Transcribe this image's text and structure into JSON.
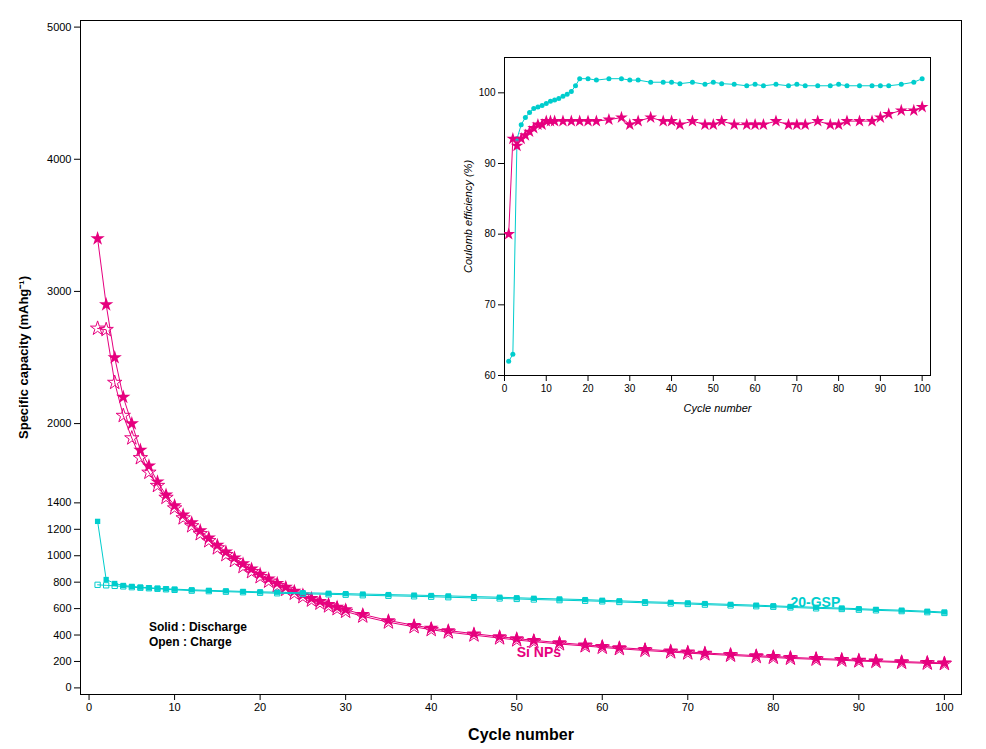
{
  "chart_data": [
    {
      "type": "line",
      "xlabel": "Cycle number",
      "ylabel": "Specific capacity (mAhg⁻¹)",
      "xlim": [
        -1,
        102
      ],
      "ylim": [
        -50,
        5050
      ],
      "xticks": [
        0,
        10,
        20,
        30,
        40,
        50,
        60,
        70,
        80,
        90,
        100
      ],
      "yticks": [
        0,
        200,
        400,
        600,
        800,
        1000,
        1200,
        1400,
        2000,
        3000,
        4000,
        5000
      ],
      "grid": false,
      "series": [
        {
          "color": "#E6007E",
          "marker": "star",
          "x": [
            1,
            2,
            3,
            4,
            5,
            6,
            7,
            8,
            9,
            10,
            11,
            12,
            13,
            14,
            15,
            16,
            17,
            18,
            19,
            20,
            21,
            22,
            23,
            24,
            25,
            26,
            27,
            28,
            29,
            30,
            32,
            35,
            38,
            40,
            42,
            45,
            48,
            50,
            52,
            55,
            58,
            60,
            62,
            65,
            68,
            70,
            72,
            75,
            78,
            80,
            82,
            85,
            88,
            90,
            92,
            95,
            98,
            100
          ],
          "values": [
            3400,
            2900,
            2500,
            2200,
            2000,
            1800,
            1680,
            1560,
            1460,
            1380,
            1310,
            1250,
            1190,
            1135,
            1080,
            1030,
            985,
            940,
            900,
            862,
            826,
            792,
            762,
            732,
            705,
            678,
            655,
            633,
            612,
            592,
            556,
            510,
            474,
            452,
            434,
            410,
            388,
            373,
            360,
            342,
            326,
            315,
            305,
            292,
            280,
            272,
            264,
            254,
            244,
            238,
            231,
            223,
            216,
            210,
            205,
            199,
            193,
            189
          ]
        },
        {
          "color": "#E6007E",
          "marker": "open_star",
          "x": [
            1,
            2,
            3,
            4,
            5,
            6,
            7,
            8,
            9,
            10,
            11,
            12,
            13,
            14,
            15,
            16,
            17,
            18,
            19,
            20,
            21,
            22,
            23,
            24,
            25,
            26,
            27,
            28,
            29,
            30,
            32,
            35,
            38,
            40,
            42,
            45,
            48,
            50,
            52,
            55,
            58,
            60,
            62,
            65,
            68,
            70,
            72,
            75,
            78,
            80,
            82,
            85,
            88,
            90,
            92,
            95,
            98,
            100
          ],
          "values": [
            2720,
            2710,
            2310,
            2060,
            1890,
            1740,
            1630,
            1530,
            1440,
            1360,
            1285,
            1225,
            1165,
            1112,
            1058,
            1007,
            962,
            917,
            878,
            840,
            806,
            773,
            744,
            715,
            689,
            663,
            640,
            619,
            598,
            578,
            542,
            497,
            462,
            440,
            422,
            399,
            377,
            362,
            350,
            332,
            317,
            306,
            296,
            283,
            271,
            263,
            256,
            246,
            236,
            230,
            223,
            216,
            209,
            203,
            199,
            192,
            186,
            183
          ]
        },
        {
          "color": "#00CDCD",
          "marker": "square",
          "x": [
            1,
            2,
            3,
            4,
            5,
            6,
            7,
            8,
            9,
            10,
            12,
            14,
            16,
            18,
            20,
            22,
            25,
            28,
            30,
            32,
            35,
            38,
            40,
            42,
            45,
            48,
            50,
            52,
            55,
            58,
            60,
            62,
            65,
            68,
            70,
            72,
            75,
            78,
            80,
            82,
            85,
            88,
            90,
            92,
            95,
            98,
            100
          ],
          "values": [
            1260,
            820,
            790,
            775,
            768,
            762,
            758,
            754,
            750,
            747,
            742,
            738,
            734,
            730,
            727,
            724,
            720,
            716,
            713,
            710,
            706,
            702,
            699,
            696,
            691,
            686,
            682,
            678,
            673,
            668,
            663,
            659,
            652,
            647,
            643,
            638,
            632,
            626,
            621,
            616,
            610,
            604,
            599,
            594,
            588,
            580,
            574
          ]
        },
        {
          "color": "#00CDCD",
          "marker": "open_square",
          "x": [
            1,
            2,
            3,
            4,
            5,
            6,
            7,
            8,
            9,
            10,
            12,
            14,
            16,
            18,
            20,
            22,
            25,
            28,
            30,
            32,
            35,
            38,
            40,
            42,
            45,
            48,
            50,
            52,
            55,
            58,
            60,
            62,
            65,
            68,
            70,
            72,
            75,
            78,
            80,
            82,
            85,
            88,
            90,
            92,
            95,
            98,
            100
          ],
          "values": [
            780,
            776,
            772,
            768,
            762,
            758,
            754,
            750,
            746,
            742,
            736,
            732,
            728,
            724,
            720,
            716,
            712,
            708,
            705,
            701,
            697,
            693,
            690,
            686,
            681,
            677,
            673,
            669,
            664,
            659,
            655,
            650,
            644,
            639,
            635,
            630,
            624,
            618,
            614,
            609,
            602,
            597,
            592,
            587,
            581,
            573,
            567
          ]
        }
      ],
      "annotations": [
        {
          "text": "20-GSP",
          "x": 82,
          "y": 615,
          "color": "#00CDCD"
        },
        {
          "text": "Si NPs",
          "x": 50,
          "y": 235,
          "color": "#E6007E"
        },
        {
          "text": "Solid : Discharge",
          "x": 7,
          "y": 430,
          "color": "black"
        },
        {
          "text": "Open : Charge",
          "x": 7,
          "y": 320,
          "color": "black"
        }
      ]
    },
    {
      "type": "line",
      "xlabel": "Cycle number",
      "ylabel": "Coulomb efficiency (%)",
      "xlim": [
        0,
        102
      ],
      "ylim": [
        60,
        105
      ],
      "xticks": [
        0,
        10,
        20,
        30,
        40,
        50,
        60,
        70,
        80,
        90,
        100
      ],
      "yticks": [
        60,
        70,
        80,
        90,
        100
      ],
      "grid": false,
      "series": [
        {
          "color": "#00CDCD",
          "marker": "circle",
          "x": [
            1,
            2,
            3,
            4,
            5,
            6,
            7,
            8,
            9,
            10,
            11,
            12,
            13,
            14,
            15,
            16,
            17,
            18,
            20,
            22,
            25,
            28,
            30,
            32,
            35,
            38,
            40,
            42,
            45,
            48,
            50,
            52,
            55,
            58,
            60,
            62,
            65,
            68,
            70,
            72,
            75,
            78,
            80,
            82,
            85,
            88,
            90,
            92,
            95,
            98,
            100
          ],
          "values": [
            62.0,
            63.0,
            93.5,
            95.5,
            96.5,
            97.2,
            97.8,
            98.0,
            98.2,
            98.5,
            98.8,
            99.0,
            99.2,
            99.5,
            99.8,
            100.2,
            101.0,
            102.0,
            102.0,
            101.8,
            102.0,
            102.0,
            101.8,
            101.8,
            101.5,
            101.5,
            101.5,
            101.3,
            101.5,
            101.2,
            101.5,
            101.3,
            101.2,
            101.0,
            101.2,
            101.0,
            101.2,
            101.0,
            101.2,
            101.0,
            101.0,
            101.0,
            101.2,
            101.0,
            101.0,
            101.0,
            101.0,
            101.0,
            101.2,
            101.5,
            102.0
          ]
        },
        {
          "color": "#E6007E",
          "marker": "star",
          "x": [
            1,
            2,
            3,
            4,
            5,
            6,
            7,
            8,
            9,
            10,
            11,
            12,
            14,
            16,
            18,
            20,
            22,
            25,
            28,
            30,
            32,
            35,
            38,
            40,
            42,
            45,
            48,
            50,
            52,
            55,
            58,
            60,
            62,
            65,
            68,
            70,
            72,
            75,
            78,
            80,
            82,
            85,
            88,
            90,
            92,
            95,
            98,
            100
          ],
          "values": [
            80,
            93.5,
            92.5,
            93.5,
            94.0,
            94.5,
            95.0,
            95.5,
            95.5,
            96.0,
            96.0,
            96.0,
            96.0,
            96.0,
            96.0,
            96.0,
            96.0,
            96.2,
            96.5,
            95.5,
            96.0,
            96.5,
            96.0,
            96.0,
            95.5,
            96.0,
            95.5,
            95.5,
            96.0,
            95.5,
            95.5,
            95.5,
            95.5,
            96.0,
            95.5,
            95.5,
            95.5,
            96.0,
            95.5,
            95.5,
            96.0,
            96.0,
            96.0,
            96.5,
            97.0,
            97.5,
            97.5,
            98.0
          ]
        }
      ]
    }
  ]
}
